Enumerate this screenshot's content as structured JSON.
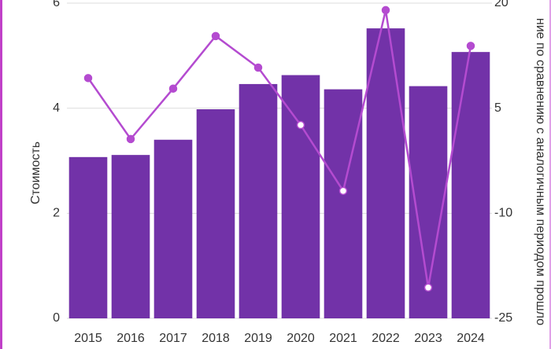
{
  "chart_data": {
    "type": "bar-line",
    "y_label": "Стоимость",
    "y2_label": "ние по сравнению с аналогичным периодом прошло",
    "categories": [
      "2015",
      "2016",
      "2017",
      "2018",
      "2019",
      "2020",
      "2021",
      "2022",
      "2023",
      "2024"
    ],
    "series": [
      {
        "type": "bar",
        "color": "#7232a8",
        "values": [
          3.07,
          3.11,
          3.4,
          3.98,
          4.46,
          4.63,
          4.36,
          5.52,
          4.42,
          5.07
        ]
      },
      {
        "type": "line",
        "axis": "y2",
        "color": "#b44bd0",
        "values": [
          9.3,
          0.6,
          7.8,
          15.3,
          10.8,
          2.6,
          -6.8,
          19.0,
          -20.6,
          13.9
        ],
        "marker_fills": [
          "#b44bd0",
          "#b44bd0",
          "#b44bd0",
          "#b44bd0",
          "#b44bd0",
          "#ffffff",
          "#ffffff",
          "#b44bd0",
          "#ffffff",
          "#b44bd0"
        ]
      }
    ],
    "ylim": [
      0,
      6
    ],
    "yticks": [
      0,
      2,
      4,
      6
    ],
    "y2lim": [
      -25,
      20
    ],
    "y2ticks": [
      -25,
      -10,
      5,
      20
    ],
    "grid": true
  }
}
